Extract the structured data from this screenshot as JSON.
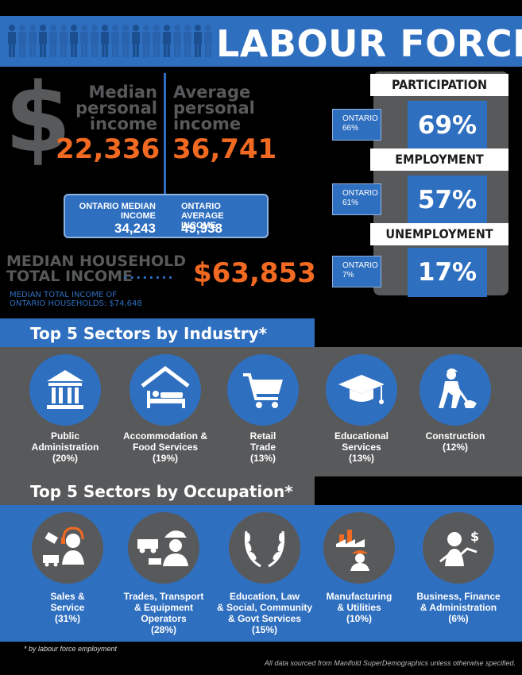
{
  "header": {
    "title": "LABOUR FORCE"
  },
  "income": {
    "median_label": "Median personal income",
    "median_value": "22,336",
    "average_label": "Average personal income",
    "average_value": "36,741",
    "ontario_median_label": "ONTARIO MEDIAN INCOME",
    "ontario_median_value": "34,243",
    "ontario_average_label": "ONTARIO AVERAGE INCOME",
    "ontario_average_value": "49,938",
    "household_label_1": "MEDIAN HOUSEHOLD",
    "household_label_2": "TOTAL INCOME",
    "household_dots": "........",
    "household_value": "$63,853",
    "ontario_household_1": "MEDIAN TOTAL INCOME OF",
    "ontario_household_2": "ONTARIO HOUSEHOLDS:  $74,648"
  },
  "rates": [
    {
      "label": "PARTICIPATION",
      "value": "69%",
      "ontario_label": "ONTARIO",
      "ontario_value": "66%"
    },
    {
      "label": "EMPLOYMENT",
      "value": "57%",
      "ontario_label": "ONTARIO",
      "ontario_value": "61%"
    },
    {
      "label": "UNEMPLOYMENT",
      "value": "17%",
      "ontario_label": "ONTARIO",
      "ontario_value": "7%"
    }
  ],
  "industry": {
    "title": "Top 5 Sectors by Industry*",
    "items": [
      {
        "name_1": "Public",
        "name_2": "Administration",
        "name_3": "",
        "pct": "(20%)",
        "icon": "government-building-icon"
      },
      {
        "name_1": "Accommodation &",
        "name_2": "Food Services",
        "name_3": "",
        "pct": "(19%)",
        "icon": "bed-icon"
      },
      {
        "name_1": "Retail",
        "name_2": "Trade",
        "name_3": "",
        "pct": "(13%)",
        "icon": "shopping-cart-icon"
      },
      {
        "name_1": "Educational",
        "name_2": "Services",
        "name_3": "",
        "pct": "(13%)",
        "icon": "graduation-cap-icon"
      },
      {
        "name_1": "Construction",
        "name_2": "",
        "name_3": "",
        "pct": "(12%)",
        "icon": "worker-shovel-icon"
      }
    ]
  },
  "occupation": {
    "title": "Top 5 Sectors by Occupation*",
    "items": [
      {
        "name_1": "Sales &",
        "name_2": "Service",
        "name_3": "",
        "pct": "(31%)",
        "icon": "headset-agent-icon"
      },
      {
        "name_1": "Trades, Transport",
        "name_2": "& Equipment",
        "name_3": "Operators",
        "pct": "(28%)",
        "icon": "hardhat-truck-icon"
      },
      {
        "name_1": "Education, Law",
        "name_2": "& Social, Community",
        "name_3": "& Govt Services",
        "pct": "(15%)",
        "icon": "laurel-wreath-icon"
      },
      {
        "name_1": "Manufacturing",
        "name_2": "& Utilities",
        "name_3": "",
        "pct": "(10%)",
        "icon": "factory-worker-icon"
      },
      {
        "name_1": "Business, Finance",
        "name_2": "& Administration",
        "name_3": "",
        "pct": "(6%)",
        "icon": "businesswoman-growth-icon"
      }
    ]
  },
  "footnote": "* by labour force employment",
  "source": "All data sourced from Manifold SuperDemographics unless otherwise specified.",
  "colors": {
    "blue": "#2f6fc0",
    "orange": "#f26a21",
    "grey": "#58595b",
    "black": "#000000"
  }
}
